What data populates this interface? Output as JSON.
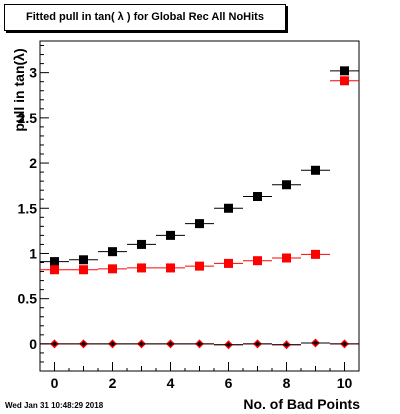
{
  "footer_text": "Wed Jan 31 10:48:29 2018",
  "chart_data": {
    "type": "scatter",
    "title": "Fitted pull in tan( λ ) for Global Rec All NoHits",
    "xlabel": "No. of Bad Points",
    "ylabel": "pull in tan(λ)",
    "xlim": [
      -0.5,
      10.5
    ],
    "ylim": [
      -0.3,
      3.35
    ],
    "x_ticks": [
      0,
      2,
      4,
      6,
      8,
      10
    ],
    "y_ticks": [
      0,
      0.5,
      1,
      1.5,
      2,
      2.5,
      3
    ],
    "x": [
      0,
      1,
      2,
      3,
      4,
      5,
      6,
      7,
      8,
      9,
      10
    ],
    "series": [
      {
        "color": "#000000",
        "marker": "square",
        "values": [
          0.91,
          0.93,
          1.02,
          1.1,
          1.2,
          1.33,
          1.5,
          1.63,
          1.76,
          1.92,
          3.02
        ]
      },
      {
        "color": "#ff0000",
        "marker": "square",
        "values": [
          0.82,
          0.82,
          0.83,
          0.84,
          0.84,
          0.86,
          0.89,
          0.92,
          0.95,
          0.99,
          2.91
        ]
      },
      {
        "color": "#ff0000",
        "marker": "diamond",
        "values": [
          0.0,
          0.0,
          0.0,
          0.0,
          0.0,
          0.0,
          -0.01,
          0.0,
          -0.01,
          0.01,
          0.0
        ]
      },
      {
        "color": "#000000",
        "marker": "diamond",
        "values": [
          0.0,
          0.0,
          0.0,
          0.0,
          0.0,
          0.0,
          -0.01,
          0.0,
          -0.01,
          0.01,
          0.0
        ]
      }
    ]
  }
}
